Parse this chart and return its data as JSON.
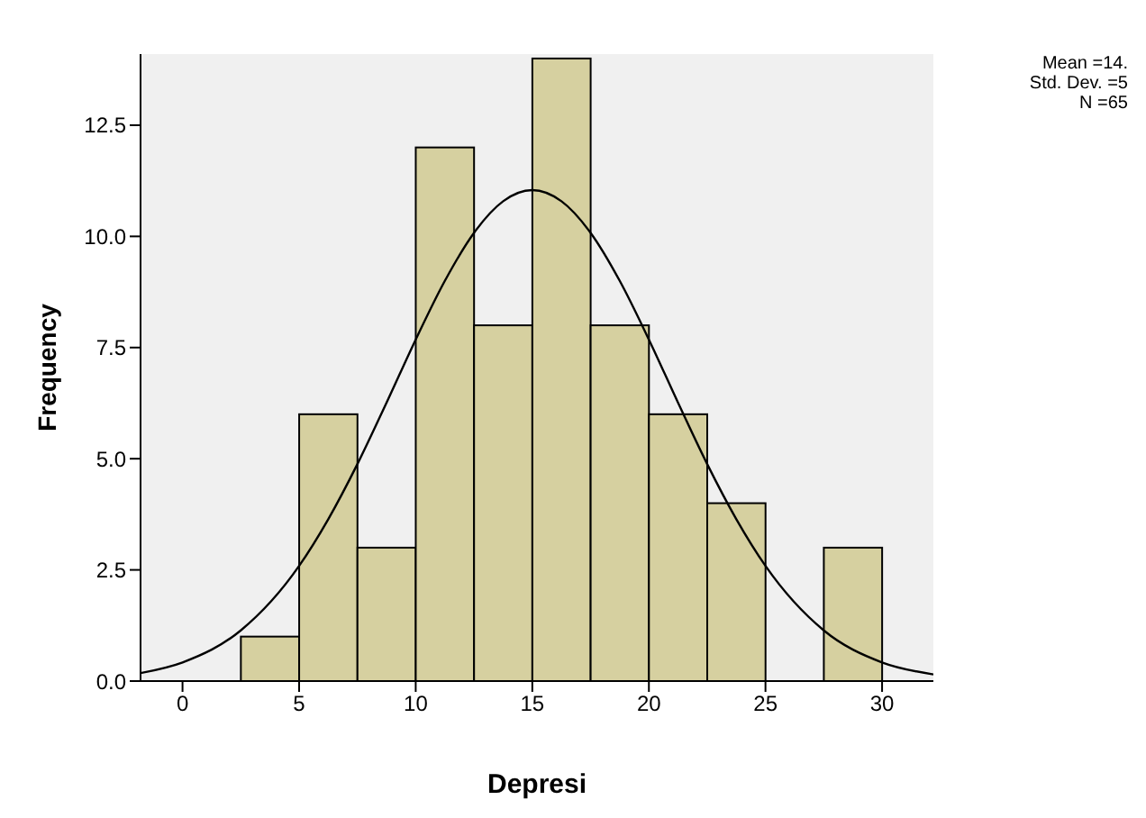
{
  "chart_data": {
    "type": "histogram",
    "xlabel": "Depresi",
    "ylabel": "Frequency",
    "bins": [
      2.5,
      5,
      7.5,
      10,
      12.5,
      15,
      17.5,
      20,
      22.5,
      25,
      27.5,
      30
    ],
    "values": [
      1,
      6,
      3,
      12,
      8,
      14,
      8,
      6,
      4,
      0,
      3
    ],
    "color": "#d6d0a0",
    "series": [
      {
        "type": "line",
        "color": "#000000",
        "x": [
          -1.8,
          0,
          2.5,
          5,
          6.25,
          7.5,
          8.75,
          10,
          11.25,
          12.5,
          13.75,
          15,
          16.25,
          17.5,
          18.75,
          20,
          21.25,
          22.5,
          23.75,
          25,
          27.5,
          30,
          32.2
        ],
        "values": [
          0.18,
          0.42,
          1.14,
          2.59,
          3.64,
          4.88,
          6.26,
          7.68,
          9.0,
          10.08,
          10.79,
          11.04,
          10.79,
          10.08,
          9.0,
          7.68,
          6.26,
          4.88,
          3.64,
          2.59,
          1.14,
          0.42,
          0.15
        ]
      }
    ],
    "xlim": [
      -1.8,
      32.2
    ],
    "xticks": [
      0,
      5,
      10,
      15,
      20,
      25,
      30
    ],
    "ylim": [
      0,
      14.1
    ],
    "yticks": [
      {
        "value": 0,
        "label": "0.0"
      },
      {
        "value": 2.5,
        "label": "2.5"
      },
      {
        "value": 5,
        "label": "5.0"
      },
      {
        "value": 7.5,
        "label": "7.5"
      },
      {
        "value": 10,
        "label": "10.0"
      },
      {
        "value": 12.5,
        "label": "12.5"
      }
    ],
    "annotations": [
      "Mean =14.",
      "Std. Dev. =5",
      "N =65"
    ]
  }
}
